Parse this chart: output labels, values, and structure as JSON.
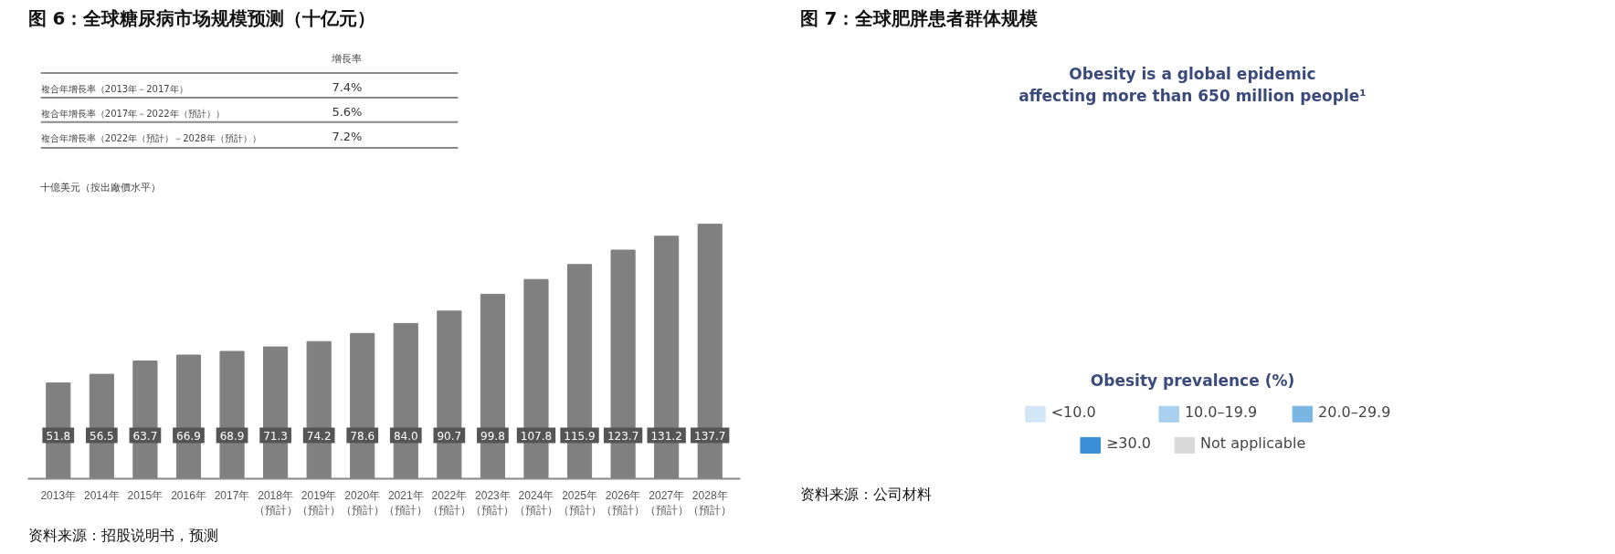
{
  "chart_data": [
    {
      "type": "bar",
      "title": "图 6：全球糖尿病市场规模预测（十亿元）",
      "ylabel": "十億美元（按出廠價水平）",
      "categories": [
        "2013年",
        "2014年",
        "2015年",
        "2016年",
        "2017年",
        "2018年（預計）",
        "2019年（預計）",
        "2020年（預計）",
        "2021年（預計）",
        "2022年（預計）",
        "2023年（預計）",
        "2024年（預計）",
        "2025年（預計）",
        "2026年（預計）",
        "2027年（預計）",
        "2028年（預計）"
      ],
      "values": [
        51.8,
        56.5,
        63.7,
        66.9,
        68.9,
        71.3,
        74.2,
        78.6,
        84.0,
        90.7,
        99.8,
        107.8,
        115.9,
        123.7,
        131.2,
        137.7
      ],
      "value_labels": [
        "51.8",
        "56.5",
        "63.7",
        "66.9",
        "68.9",
        "71.3",
        "74.2",
        "78.6",
        "84.0",
        "90.7",
        "99.8",
        "107.8",
        "115.9",
        "123.7",
        "131.2",
        "137.7"
      ],
      "color": "#808080",
      "grid": false,
      "tick_labels": "x",
      "annotations": [
        "增長率",
        "複合年增長率（2013年－2017年）",
        "7.4%",
        "複合年增長率（2017年－2022年（預計））",
        "5.6%",
        "複合年增長率（2022年（預計）－2028年（預計））",
        "7.2%",
        "资料来源：招股说明书，预测"
      ]
    },
    {
      "type": "other",
      "title": "图 7：全球肥胖患者群体规模",
      "subtitle": "Obesity is a global epidemic\naffecting more than 650 million people¹",
      "legend_title": "Obesity prevalence (%)",
      "categories": [
        "<10.0",
        "10.0–19.9",
        "20.0–29.9",
        "≥30.0",
        "Not applicable"
      ],
      "colors": [
        "#d3e6f5",
        "#a9d0ee",
        "#7ab6e3",
        "#3a8fd6",
        "#d9d9d9"
      ],
      "annotations": [
        "资料来源：公司材料"
      ]
    }
  ]
}
